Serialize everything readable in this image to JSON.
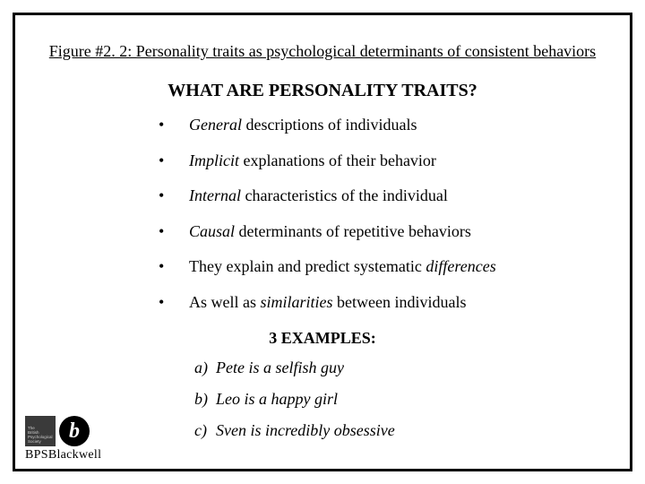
{
  "figure_caption": "Figure #2. 2: Personality traits as psychological determinants of consistent behaviors",
  "heading": "WHAT ARE PERSONALITY TRAITS?",
  "bullets": [
    {
      "italic": "General",
      "rest": " descriptions of individuals"
    },
    {
      "italic": "Implicit",
      "rest": " explanations of their behavior"
    },
    {
      "italic": "Internal",
      "rest": " characteristics of the individual"
    },
    {
      "italic": "Causal",
      "rest": " determinants of repetitive behaviors"
    },
    {
      "pre": "They explain and predict systematic ",
      "italic": "differences",
      "rest": ""
    },
    {
      "pre": "As well as ",
      "italic": "similarities",
      "rest": " between individuals"
    }
  ],
  "subheading": "3 EXAMPLES:",
  "examples": [
    {
      "label": "a)",
      "text": "Pete is a selfish guy"
    },
    {
      "label": "b)",
      "text": "Leo is a happy girl"
    },
    {
      "label": "c)",
      "text": "Sven is incredibly obsessive"
    }
  ],
  "logo": {
    "square_lines": [
      "The",
      "British",
      "Psychological",
      "Society"
    ],
    "b_glyph": "b",
    "wordmark_prefix": "BPS",
    "wordmark_rest": "Blackwell"
  },
  "colors": {
    "background": "#ffffff",
    "border": "#000000",
    "text": "#000000",
    "logo_square_bg": "#3a3a3a",
    "logo_square_text": "#cccccc",
    "logo_circle_bg": "#000000",
    "logo_circle_text": "#ffffff"
  }
}
